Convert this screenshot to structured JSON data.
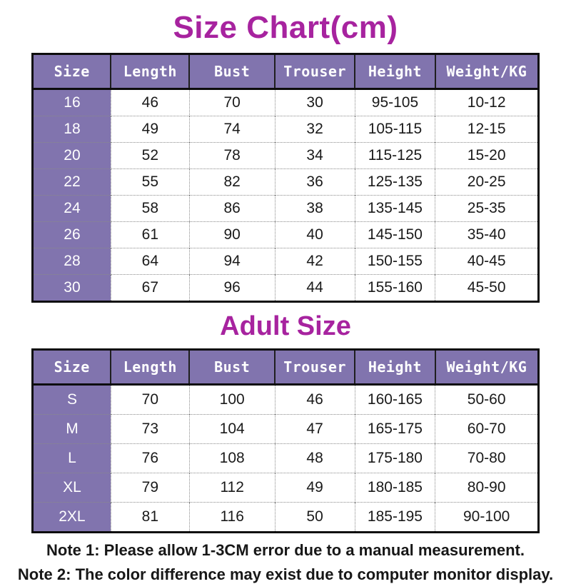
{
  "page": {
    "title": "Size Chart(cm)",
    "subtitle": "Adult Size",
    "notes": [
      "Note 1: Please allow 1-3CM error due to a manual measurement.",
      "Note 2: The color difference may exist due to computer monitor display."
    ]
  },
  "colors": {
    "title": "#a7239f",
    "header_bg": "#8174ae",
    "header_text": "#ffffff",
    "cell_text": "#1a1a1a"
  },
  "chart_data": [
    {
      "type": "table",
      "title": "Size Chart(cm)",
      "columns": [
        "Size",
        "Length",
        "Bust",
        "Trouser",
        "Height",
        "Weight/KG"
      ],
      "rows": [
        [
          "16",
          "46",
          "70",
          "30",
          "95-105",
          "10-12"
        ],
        [
          "18",
          "49",
          "74",
          "32",
          "105-115",
          "12-15"
        ],
        [
          "20",
          "52",
          "78",
          "34",
          "115-125",
          "15-20"
        ],
        [
          "22",
          "55",
          "82",
          "36",
          "125-135",
          "20-25"
        ],
        [
          "24",
          "58",
          "86",
          "38",
          "135-145",
          "25-35"
        ],
        [
          "26",
          "61",
          "90",
          "40",
          "145-150",
          "35-40"
        ],
        [
          "28",
          "64",
          "94",
          "42",
          "150-155",
          "40-45"
        ],
        [
          "30",
          "67",
          "96",
          "44",
          "155-160",
          "45-50"
        ]
      ]
    },
    {
      "type": "table",
      "title": "Adult Size",
      "columns": [
        "Size",
        "Length",
        "Bust",
        "Trouser",
        "Height",
        "Weight/KG"
      ],
      "rows": [
        [
          "S",
          "70",
          "100",
          "46",
          "160-165",
          "50-60"
        ],
        [
          "M",
          "73",
          "104",
          "47",
          "165-175",
          "60-70"
        ],
        [
          "L",
          "76",
          "108",
          "48",
          "175-180",
          "70-80"
        ],
        [
          "XL",
          "79",
          "112",
          "49",
          "180-185",
          "80-90"
        ],
        [
          "2XL",
          "81",
          "116",
          "50",
          "185-195",
          "90-100"
        ]
      ]
    }
  ]
}
